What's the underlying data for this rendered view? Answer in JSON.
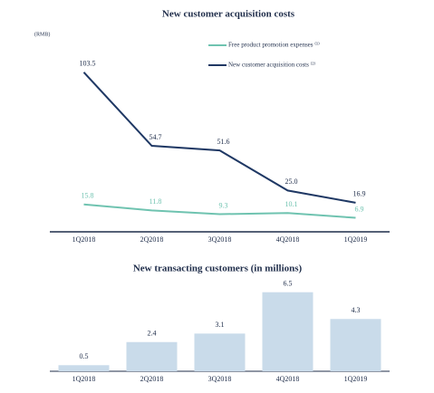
{
  "chart_data": [
    {
      "type": "line",
      "title": "New customer acquisition costs",
      "unit": "(RMB)",
      "categories": [
        "1Q2018",
        "2Q2018",
        "3Q2018",
        "4Q2018",
        "1Q2019"
      ],
      "ylim": [
        0,
        110
      ],
      "series": [
        {
          "name": "Free product promotion expenses ⁽¹⁾",
          "color": "#6fc3b0",
          "values": [
            15.8,
            11.8,
            9.3,
            10.1,
            6.9
          ]
        },
        {
          "name": "New customer acquisition costs ⁽²⁾",
          "color": "#1f3864",
          "values": [
            103.5,
            54.7,
            51.6,
            25,
            16.9
          ],
          "value_labels": [
            "103.5",
            "54.7",
            "51.6",
            "25.0",
            "16.9"
          ]
        }
      ]
    },
    {
      "type": "bar",
      "title": "New transacting customers (in millions)",
      "categories": [
        "1Q2018",
        "2Q2018",
        "3Q2018",
        "4Q2018",
        "1Q2019"
      ],
      "ylim": [
        0,
        7
      ],
      "color": "#c9dbea",
      "values": [
        0.5,
        2.4,
        3.1,
        6.5,
        4.3
      ]
    }
  ]
}
